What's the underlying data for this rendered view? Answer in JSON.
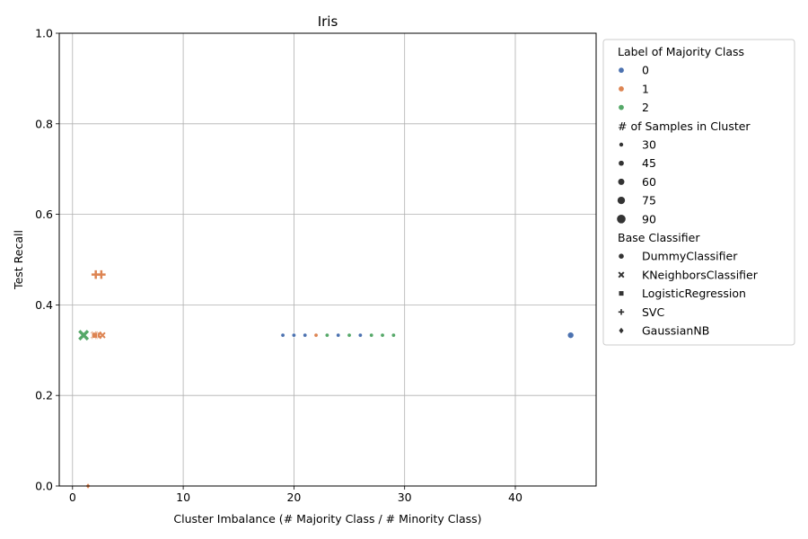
{
  "chart_data": {
    "type": "scatter",
    "title": "Iris",
    "xlabel": "Cluster Imbalance (# Majority Class / # Minority Class)",
    "ylabel": "Test Recall",
    "xlim": [
      -1.2,
      47.3
    ],
    "ylim": [
      0,
      1
    ],
    "xticks": [
      0,
      10,
      20,
      30,
      40
    ],
    "yticks": [
      0.0,
      0.2,
      0.4,
      0.6,
      0.8,
      1.0
    ],
    "xtick_labels": [
      "0",
      "10",
      "20",
      "30",
      "40"
    ],
    "ytick_labels": [
      "0.0",
      "0.2",
      "0.4",
      "0.6",
      "0.8",
      "1.0"
    ],
    "grid": true,
    "legend_position": "outside-right",
    "legend": {
      "hue_title": "Label of Majority Class",
      "hue": [
        {
          "label": "0",
          "color": "#4c72b0"
        },
        {
          "label": "1",
          "color": "#dd8452"
        },
        {
          "label": "2",
          "color": "#55a868"
        }
      ],
      "size_title": "# of Samples in Cluster",
      "sizes": [
        {
          "label": "30",
          "value": 30
        },
        {
          "label": "45",
          "value": 45
        },
        {
          "label": "60",
          "value": 60
        },
        {
          "label": "75",
          "value": 75
        },
        {
          "label": "90",
          "value": 90
        }
      ],
      "style_title": "Base Classifier",
      "styles": [
        {
          "label": "DummyClassifier",
          "marker": "circle"
        },
        {
          "label": "KNeighborsClassifier",
          "marker": "x"
        },
        {
          "label": "LogisticRegression",
          "marker": "square"
        },
        {
          "label": "SVC",
          "marker": "plus"
        },
        {
          "label": "GaussianNB",
          "marker": "diamond"
        }
      ]
    },
    "points": [
      {
        "x": 19,
        "y": 0.333,
        "hue": "0",
        "size": 30,
        "style": "DummyClassifier"
      },
      {
        "x": 20,
        "y": 0.333,
        "hue": "0",
        "size": 30,
        "style": "DummyClassifier"
      },
      {
        "x": 21,
        "y": 0.333,
        "hue": "0",
        "size": 30,
        "style": "DummyClassifier"
      },
      {
        "x": 22,
        "y": 0.333,
        "hue": "1",
        "size": 30,
        "style": "DummyClassifier"
      },
      {
        "x": 23,
        "y": 0.333,
        "hue": "2",
        "size": 30,
        "style": "DummyClassifier"
      },
      {
        "x": 24,
        "y": 0.333,
        "hue": "0",
        "size": 30,
        "style": "DummyClassifier"
      },
      {
        "x": 25,
        "y": 0.333,
        "hue": "2",
        "size": 30,
        "style": "DummyClassifier"
      },
      {
        "x": 26,
        "y": 0.333,
        "hue": "0",
        "size": 30,
        "style": "DummyClassifier"
      },
      {
        "x": 27,
        "y": 0.333,
        "hue": "2",
        "size": 30,
        "style": "DummyClassifier"
      },
      {
        "x": 28,
        "y": 0.333,
        "hue": "2",
        "size": 30,
        "style": "DummyClassifier"
      },
      {
        "x": 29,
        "y": 0.333,
        "hue": "2",
        "size": 30,
        "style": "DummyClassifier"
      },
      {
        "x": 45,
        "y": 0.333,
        "hue": "0",
        "size": 60,
        "style": "DummyClassifier"
      },
      {
        "x": 1.0,
        "y": 0.333,
        "hue": "2",
        "size": 90,
        "style": "KNeighborsClassifier"
      },
      {
        "x": 2.0,
        "y": 0.333,
        "hue": "1",
        "size": 60,
        "style": "KNeighborsClassifier"
      },
      {
        "x": 2.3,
        "y": 0.333,
        "hue": "1",
        "size": 60,
        "style": "KNeighborsClassifier"
      },
      {
        "x": 2.7,
        "y": 0.333,
        "hue": "1",
        "size": 45,
        "style": "KNeighborsClassifier"
      },
      {
        "x": 2.0,
        "y": 0.333,
        "hue": "1",
        "size": 60,
        "style": "LogisticRegression"
      },
      {
        "x": 2.1,
        "y": 0.467,
        "hue": "1",
        "size": 75,
        "style": "SVC"
      },
      {
        "x": 2.6,
        "y": 0.467,
        "hue": "1",
        "size": 75,
        "style": "SVC"
      },
      {
        "x": 1.4,
        "y": 0.0,
        "hue": "1",
        "size": 45,
        "style": "GaussianNB"
      }
    ]
  }
}
